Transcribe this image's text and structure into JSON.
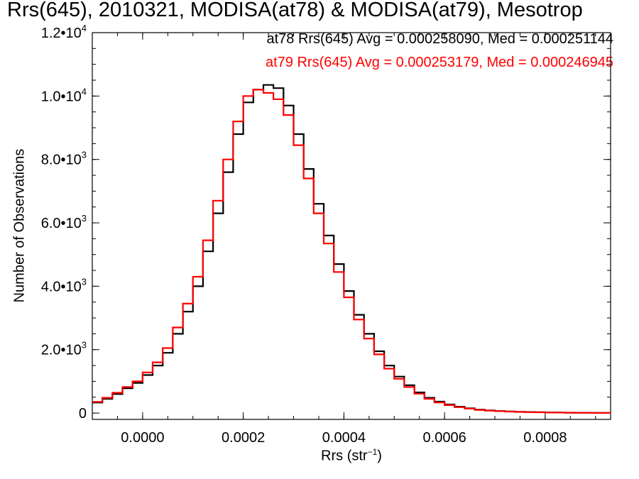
{
  "title": "Rrs(645), 2010321, MODISA(at78) & MODISA(at79), Mesotrop",
  "legend": [
    {
      "text": "at78 Rrs(645) Avg = 0.000258090, Med = 0.000251144",
      "color": "#000000"
    },
    {
      "text": "at79 Rrs(645) Avg = 0.000253179, Med = 0.000246945",
      "color": "#ff0000"
    }
  ],
  "chart_data": {
    "type": "line",
    "step": true,
    "xlabel": "Rrs (str",
    "xlabel_exponent": "−1",
    "xlabel_close": ")",
    "ylabel": "Number of Observations",
    "xlim": [
      -0.0001,
      0.00093
    ],
    "ylim": [
      -200,
      12000
    ],
    "xticks": [
      0.0,
      0.0002,
      0.0004,
      0.0006,
      0.0008
    ],
    "xtick_labels": [
      "0.0000",
      "0.0002",
      "0.0004",
      "0.0006",
      "0.0008"
    ],
    "yticks": [
      0,
      2000,
      4000,
      6000,
      8000,
      10000,
      12000
    ],
    "ytick_labels": [
      {
        "mant": "0",
        "exp": ""
      },
      {
        "mant": "2.0•10",
        "exp": "3"
      },
      {
        "mant": "4.0•10",
        "exp": "3"
      },
      {
        "mant": "6.0•10",
        "exp": "3"
      },
      {
        "mant": "8.0•10",
        "exp": "3"
      },
      {
        "mant": "1.0•10",
        "exp": "4"
      },
      {
        "mant": "1.2•10",
        "exp": "4"
      }
    ],
    "x": [
      -0.0001,
      -8e-05,
      -6e-05,
      -4e-05,
      -2e-05,
      0.0,
      2e-05,
      4e-05,
      6e-05,
      8e-05,
      0.0001,
      0.00012,
      0.00014,
      0.00016,
      0.00018,
      0.0002,
      0.00022,
      0.00024,
      0.00026,
      0.00028,
      0.0003,
      0.00032,
      0.00034,
      0.00036,
      0.00038,
      0.0004,
      0.00042,
      0.00044,
      0.00046,
      0.00048,
      0.0005,
      0.00052,
      0.00054,
      0.00056,
      0.00058,
      0.0006,
      0.00062,
      0.00064,
      0.00066,
      0.00068,
      0.0007,
      0.00072,
      0.00074,
      0.00076,
      0.00078,
      0.0008,
      0.00082,
      0.00084,
      0.00086,
      0.00088,
      0.0009,
      0.00092
    ],
    "series": [
      {
        "name": "at78",
        "color": "#000000",
        "values": [
          330,
          450,
          600,
          780,
          950,
          1200,
          1500,
          1900,
          2500,
          3200,
          4000,
          5100,
          6300,
          7600,
          8800,
          9800,
          10200,
          10350,
          10250,
          9700,
          8800,
          7700,
          6600,
          5600,
          4700,
          3850,
          3100,
          2500,
          1950,
          1500,
          1150,
          880,
          650,
          480,
          360,
          270,
          200,
          150,
          110,
          85,
          65,
          50,
          40,
          32,
          25,
          20,
          15,
          12,
          10,
          8,
          6,
          5
        ]
      },
      {
        "name": "at79",
        "color": "#ff0000",
        "values": [
          350,
          480,
          640,
          820,
          1000,
          1280,
          1600,
          2050,
          2700,
          3450,
          4300,
          5450,
          6700,
          8000,
          9200,
          10000,
          10200,
          10100,
          9900,
          9400,
          8450,
          7400,
          6300,
          5350,
          4450,
          3650,
          2950,
          2350,
          1850,
          1400,
          1080,
          820,
          610,
          450,
          335,
          250,
          185,
          140,
          100,
          78,
          60,
          46,
          36,
          29,
          23,
          18,
          14,
          11,
          9,
          7,
          5,
          4
        ]
      }
    ]
  }
}
